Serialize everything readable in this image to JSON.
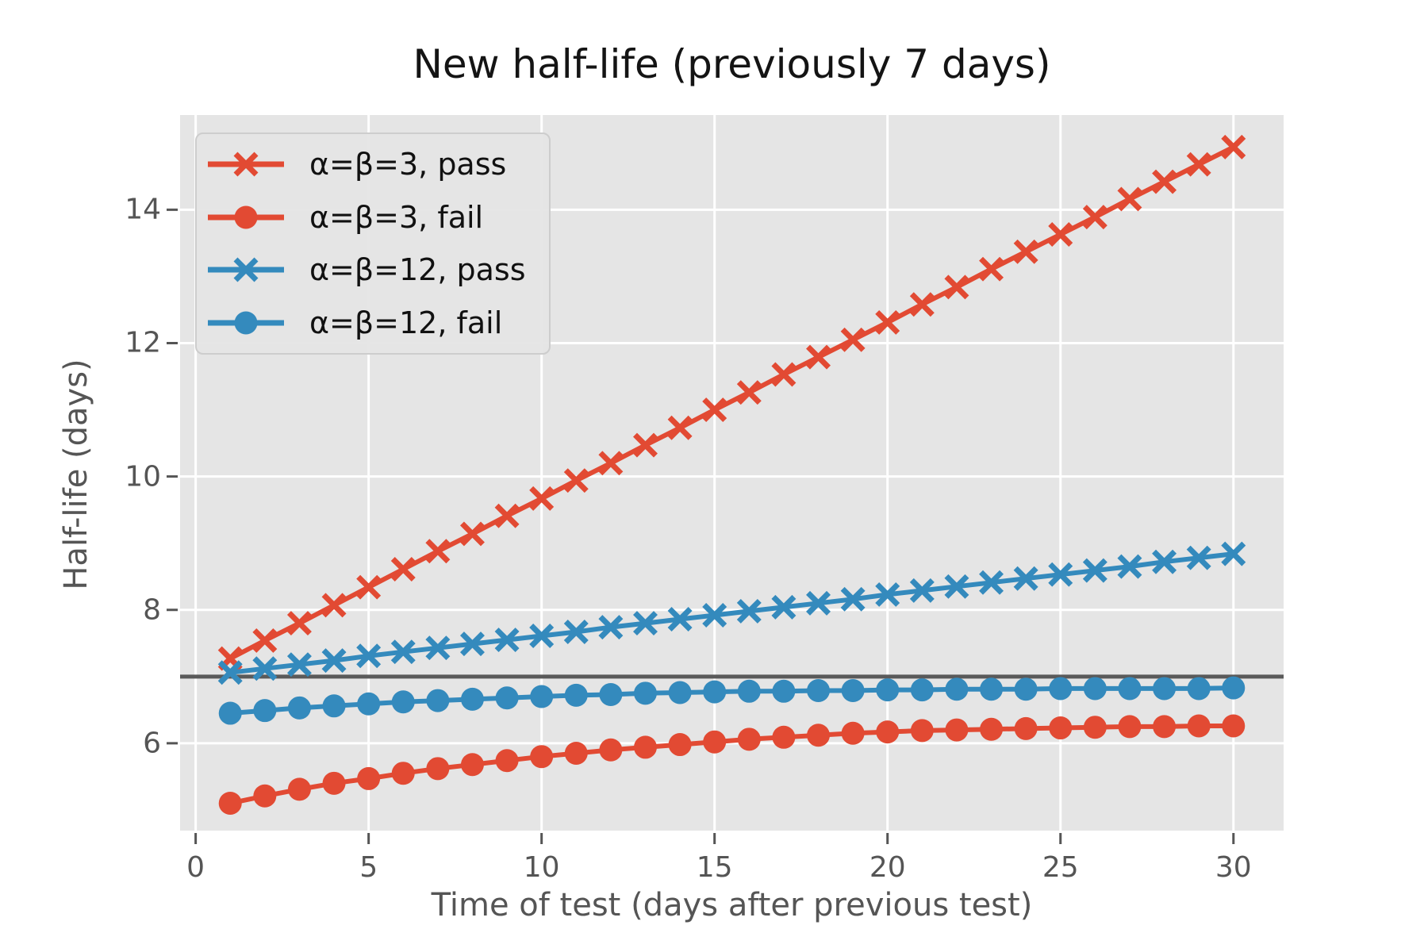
{
  "figure": {
    "background": "#ffffff"
  },
  "chart_data": {
    "type": "line",
    "title": "New half-life (previously 7 days)",
    "xlabel": "Time of test (days after previous test)",
    "ylabel": "Half-life (days)",
    "x": [
      1,
      2,
      3,
      4,
      5,
      6,
      7,
      8,
      9,
      10,
      11,
      12,
      13,
      14,
      15,
      16,
      17,
      18,
      19,
      20,
      21,
      22,
      23,
      24,
      25,
      26,
      27,
      28,
      29,
      30
    ],
    "series": [
      {
        "name": "α=β=3, pass",
        "color": "#e24a33",
        "marker": "x",
        "values": [
          7.27,
          7.54,
          7.8,
          8.07,
          8.34,
          8.61,
          8.88,
          9.14,
          9.41,
          9.67,
          9.94,
          10.2,
          10.47,
          10.73,
          11.0,
          11.26,
          11.53,
          11.79,
          12.05,
          12.31,
          12.58,
          12.84,
          13.11,
          13.37,
          13.63,
          13.89,
          14.16,
          14.42,
          14.68,
          14.94
        ]
      },
      {
        "name": "α=β=3, fail",
        "color": "#e24a33",
        "marker": "o",
        "values": [
          5.1,
          5.21,
          5.31,
          5.4,
          5.47,
          5.55,
          5.62,
          5.68,
          5.74,
          5.8,
          5.85,
          5.9,
          5.94,
          5.98,
          6.02,
          6.06,
          6.09,
          6.12,
          6.15,
          6.17,
          6.19,
          6.2,
          6.21,
          6.22,
          6.23,
          6.24,
          6.25,
          6.25,
          6.26,
          6.26
        ]
      },
      {
        "name": "α=β=12, pass",
        "color": "#348abd",
        "marker": "x",
        "values": [
          7.06,
          7.12,
          7.18,
          7.24,
          7.31,
          7.37,
          7.43,
          7.49,
          7.55,
          7.61,
          7.67,
          7.74,
          7.8,
          7.86,
          7.92,
          7.98,
          8.04,
          8.1,
          8.16,
          8.23,
          8.29,
          8.35,
          8.41,
          8.47,
          8.53,
          8.59,
          8.65,
          8.72,
          8.78,
          8.84
        ]
      },
      {
        "name": "α=β=12, fail",
        "color": "#348abd",
        "marker": "o",
        "values": [
          6.45,
          6.49,
          6.53,
          6.56,
          6.59,
          6.62,
          6.64,
          6.66,
          6.68,
          6.7,
          6.72,
          6.73,
          6.75,
          6.76,
          6.77,
          6.78,
          6.78,
          6.79,
          6.79,
          6.8,
          6.8,
          6.81,
          6.81,
          6.81,
          6.82,
          6.82,
          6.82,
          6.82,
          6.82,
          6.83
        ]
      }
    ],
    "reference_line": {
      "y": 7,
      "color": "#5a5a5a"
    },
    "xticks": [
      0,
      5,
      10,
      15,
      20,
      25,
      30
    ],
    "yticks": [
      6,
      8,
      10,
      12,
      14
    ],
    "xlim": [
      -0.45,
      31.45
    ],
    "ylim": [
      4.69,
      15.42
    ],
    "grid": true,
    "legend_position": "upper-left",
    "style": {
      "panel_bg": "#e5e5e5",
      "grid_color": "#ffffff",
      "tick_color": "#555555",
      "text_color": "#555555",
      "title_color": "#141414",
      "legend_bg": "#e5e5e5",
      "legend_border": "#cdcdcd"
    }
  }
}
